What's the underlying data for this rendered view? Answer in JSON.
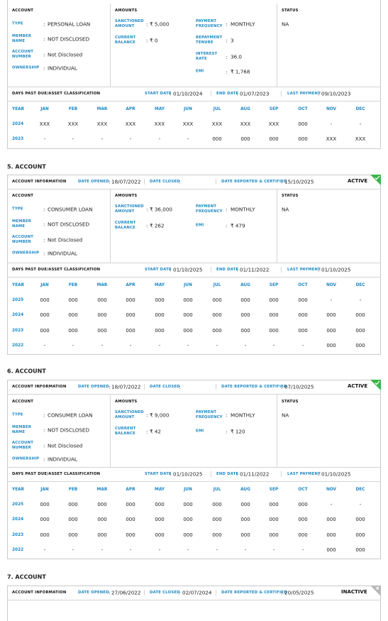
{
  "sep": ":",
  "months_header": [
    "YEAR",
    "JAN",
    "FEB",
    "MAR",
    "APR",
    "MAY",
    "JUN",
    "JUL",
    "AUG",
    "SEP",
    "OCT",
    "NOV",
    "DEC"
  ],
  "accounts": [
    {
      "details": {
        "account_heading": "ACCOUNT",
        "account_fields": [
          {
            "label": "TYPE",
            "value": "PERSONAL LOAN"
          },
          {
            "label": "MEMBER NAME",
            "value": "NOT DISCLOSED"
          },
          {
            "label": "ACCOUNT NUMBER",
            "value": "Not Disclosed"
          },
          {
            "label": "OWNERSHIP",
            "value": "INDIVIDUAL"
          }
        ],
        "amounts_heading": "AMOUNTS",
        "amounts_left": [
          {
            "label": "SANCTIONED AMOUNT",
            "value": "₹ 5,000"
          },
          {
            "label": "CURRENT BALANCE",
            "value": "₹ 0"
          }
        ],
        "amounts_right": [
          {
            "label": "PAYMENT FREQUENCY",
            "value": "MONTHLY"
          },
          {
            "label": "REPAYMENT TENURE",
            "value": "3"
          },
          {
            "label": "INTEREST RATE",
            "value": "36.0"
          },
          {
            "label": "EMI",
            "value": "₹ 1,768"
          }
        ],
        "status_heading": "STATUS",
        "status": "NA"
      },
      "dpd": {
        "heading": "DAYS PAST DUE/ASSET CLASSIFICATION",
        "start_label": "START DATE",
        "start": "01/10/2024",
        "end_label": "END DATE",
        "end": "01/07/2023",
        "last_label": "LAST PAYMENT",
        "last": "09/10/2023"
      },
      "table": [
        [
          "2024",
          "XXX",
          "XXX",
          "XXX",
          "XXX",
          "XXX",
          "XXX",
          "XXX",
          "XXX",
          "XXX",
          "000",
          "-",
          "-"
        ],
        [
          "2023",
          "-",
          "-",
          "-",
          "-",
          "-",
          "-",
          "000",
          "000",
          "000",
          "000",
          "XXX",
          "XXX"
        ]
      ]
    },
    {
      "title": "5. ACCOUNT",
      "info": {
        "heading": "ACCOUNT INFORMATION",
        "opened_label": "DATE OPENED",
        "opened": "18/07/2022",
        "closed_label": "DATE CLOSED",
        "reported_label": "DATE REPORTED & CERTIFIED",
        "reported": "15/10/2025",
        "status": "ACTIVE"
      },
      "details": {
        "account_heading": "ACCOUNT",
        "account_fields": [
          {
            "label": "TYPE",
            "value": "CONSUMER LOAN"
          },
          {
            "label": "MEMBER NAME",
            "value": "NOT DISCLOSED"
          },
          {
            "label": "ACCOUNT NUMBER",
            "value": "Not Disclosed"
          },
          {
            "label": "OWNERSHIP",
            "value": "INDIVIDUAL"
          }
        ],
        "amounts_heading": "AMOUNTS",
        "amounts_left": [
          {
            "label": "SANCTIONED AMOUNT",
            "value": "₹ 36,000"
          },
          {
            "label": "CURRENT BALANCE",
            "value": "₹ 262"
          }
        ],
        "amounts_right": [
          {
            "label": "PAYMENT FREQUENCY",
            "value": "MONTHLY"
          },
          {
            "label": "EMI",
            "value": "₹ 479"
          }
        ],
        "status_heading": "STATUS",
        "status": "NA"
      },
      "dpd": {
        "heading": "DAYS PAST DUE/ASSET CLASSIFICATION",
        "start_label": "START DATE",
        "start": "01/10/2025",
        "end_label": "END DATE",
        "end": "01/11/2022",
        "last_label": "LAST PAYMENT",
        "last": "01/10/2025"
      },
      "table": [
        [
          "2025",
          "000",
          "000",
          "000",
          "000",
          "000",
          "000",
          "000",
          "000",
          "000",
          "000",
          "-",
          "-"
        ],
        [
          "2024",
          "000",
          "000",
          "000",
          "000",
          "000",
          "000",
          "000",
          "000",
          "000",
          "000",
          "000",
          "000"
        ],
        [
          "2023",
          "000",
          "000",
          "000",
          "000",
          "000",
          "000",
          "000",
          "000",
          "000",
          "000",
          "000",
          "000"
        ],
        [
          "2022",
          "-",
          "-",
          "-",
          "-",
          "-",
          "-",
          "-",
          "-",
          "-",
          "-",
          "000",
          "000"
        ]
      ]
    },
    {
      "title": "6. ACCOUNT",
      "info": {
        "heading": "ACCOUNT INFORMATION",
        "opened_label": "DATE OPENED",
        "opened": "18/07/2022",
        "closed_label": "DATE CLOSED",
        "reported_label": "DATE REPORTED & CERTIFIED",
        "reported": "07/10/2025",
        "status": "ACTIVE"
      },
      "details": {
        "account_heading": "ACCOUNT",
        "account_fields": [
          {
            "label": "TYPE",
            "value": "CONSUMER LOAN"
          },
          {
            "label": "MEMBER NAME",
            "value": "NOT DISCLOSED"
          },
          {
            "label": "ACCOUNT NUMBER",
            "value": "Not Disclosed"
          },
          {
            "label": "OWNERSHIP",
            "value": "INDIVIDUAL"
          }
        ],
        "amounts_heading": "AMOUNTS",
        "amounts_left": [
          {
            "label": "SANCTIONED AMOUNT",
            "value": "₹ 9,000"
          },
          {
            "label": "CURRENT BALANCE",
            "value": "₹ 42"
          }
        ],
        "amounts_right": [
          {
            "label": "PAYMENT FREQUENCY",
            "value": "MONTHLY"
          },
          {
            "label": "EMI",
            "value": "₹ 120"
          }
        ],
        "status_heading": "STATUS",
        "status": "NA"
      },
      "dpd": {
        "heading": "DAYS PAST DUE/ASSET CLASSIFICATION",
        "start_label": "START DATE",
        "start": "01/10/2025",
        "end_label": "END DATE",
        "end": "01/11/2022",
        "last_label": "LAST PAYMENT",
        "last": "01/10/2025"
      },
      "table": [
        [
          "2025",
          "000",
          "000",
          "000",
          "000",
          "000",
          "000",
          "000",
          "000",
          "000",
          "000",
          "-",
          "-"
        ],
        [
          "2024",
          "000",
          "000",
          "000",
          "000",
          "000",
          "000",
          "000",
          "000",
          "000",
          "000",
          "000",
          "000"
        ],
        [
          "2023",
          "000",
          "000",
          "000",
          "000",
          "000",
          "000",
          "000",
          "000",
          "000",
          "000",
          "000",
          "000"
        ],
        [
          "2022",
          "-",
          "-",
          "-",
          "-",
          "-",
          "-",
          "-",
          "-",
          "-",
          "-",
          "000",
          "000"
        ]
      ]
    },
    {
      "title": "7. ACCOUNT",
      "info": {
        "heading": "ACCOUNT INFORMATION",
        "opened_label": "DATE OPENED",
        "opened": "27/06/2022",
        "closed_label": "DATE CLOSED",
        "closed": "02/07/2024",
        "reported_label": "DATE REPORTED & CERTIFIED",
        "reported": "20/05/2025",
        "status": "INACTIVE"
      }
    }
  ]
}
